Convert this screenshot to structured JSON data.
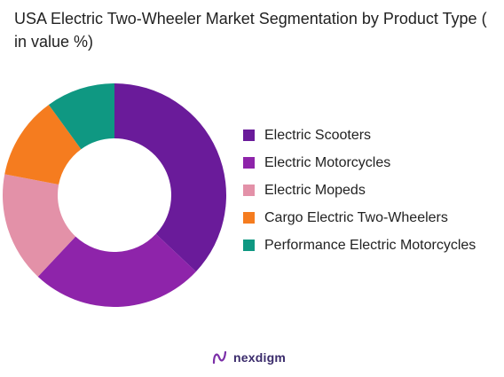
{
  "chart_data": {
    "type": "pie",
    "title": "USA Electric Two-Wheeler Market Segmentation by Product Type ( in value %)",
    "categories": [
      "Electric Scooters",
      "Electric Motorcycles",
      "Electric Mopeds",
      "Cargo Electric Two-Wheelers",
      "Performance Electric Motorcycles"
    ],
    "values": [
      37,
      25,
      16,
      12,
      10
    ],
    "colors": [
      "#6a1b9a",
      "#8e24aa",
      "#e391a8",
      "#f57c1f",
      "#0f9882"
    ],
    "legend_position": "right",
    "donut": true
  },
  "brand": {
    "name": "nexdigm",
    "icon": "nexdigm-logo-icon"
  }
}
